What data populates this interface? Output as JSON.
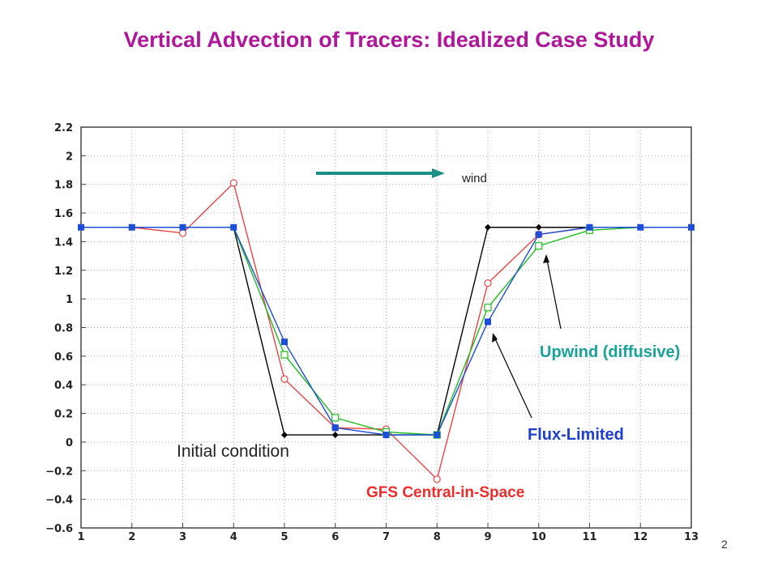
{
  "slide": {
    "title": "Vertical Advection of Tracers:  Idealized Case Study",
    "page_number": "2"
  },
  "colors": {
    "title": "#b0169a",
    "initial": "#000000",
    "gfs": "#ef4444",
    "flux": "#1d4ed8",
    "upwind": "#1fbf1f",
    "wind_arrow": "#1a8f86",
    "upwind_label": "#18a39a",
    "grid": "#b0b0b0"
  },
  "chart_data": {
    "type": "line",
    "x": [
      1,
      2,
      3,
      4,
      5,
      6,
      7,
      8,
      9,
      10,
      11,
      12,
      13
    ],
    "xlim": [
      1,
      13
    ],
    "ylim": [
      -0.6,
      2.2
    ],
    "xticks": [
      "1",
      "2",
      "3",
      "4",
      "5",
      "6",
      "7",
      "8",
      "9",
      "10",
      "11",
      "12",
      "13"
    ],
    "yticks": [
      "2.2",
      "2",
      "1.8",
      "1.6",
      "1.4",
      "1.2",
      "1",
      "0.8",
      "0.6",
      "0.4",
      "0.2",
      "0",
      "−0.2",
      "−0.4",
      "−0.6"
    ],
    "grid": true,
    "series": [
      {
        "name": "Initial condition",
        "values": [
          1.5,
          1.5,
          1.5,
          1.5,
          0.05,
          0.05,
          0.05,
          0.05,
          1.5,
          1.5,
          1.5,
          1.5,
          1.5
        ],
        "marker": "diamond"
      },
      {
        "name": "GFS Central-in-Space",
        "values": [
          1.5,
          1.5,
          1.46,
          1.81,
          0.44,
          0.1,
          0.09,
          -0.26,
          1.11,
          1.45,
          1.5,
          1.5,
          1.5
        ],
        "marker": "hollow-circle"
      },
      {
        "name": "Upwind  (diffusive)",
        "values": [
          1.5,
          1.5,
          1.5,
          1.5,
          0.61,
          0.17,
          0.07,
          0.05,
          0.94,
          1.37,
          1.48,
          1.5,
          1.5
        ],
        "marker": "hollow-square"
      },
      {
        "name": "Flux-Limited",
        "values": [
          1.5,
          1.5,
          1.5,
          1.5,
          0.7,
          0.1,
          0.05,
          0.05,
          0.84,
          1.45,
          1.5,
          1.5,
          1.5
        ],
        "marker": "filled-square"
      }
    ],
    "annotations": {
      "wind": "wind",
      "initial": "Initial condition",
      "gfs": "GFS Central-in-Space",
      "flux": "Flux-Limited",
      "upwind": "Upwind  (diffusive)"
    }
  }
}
